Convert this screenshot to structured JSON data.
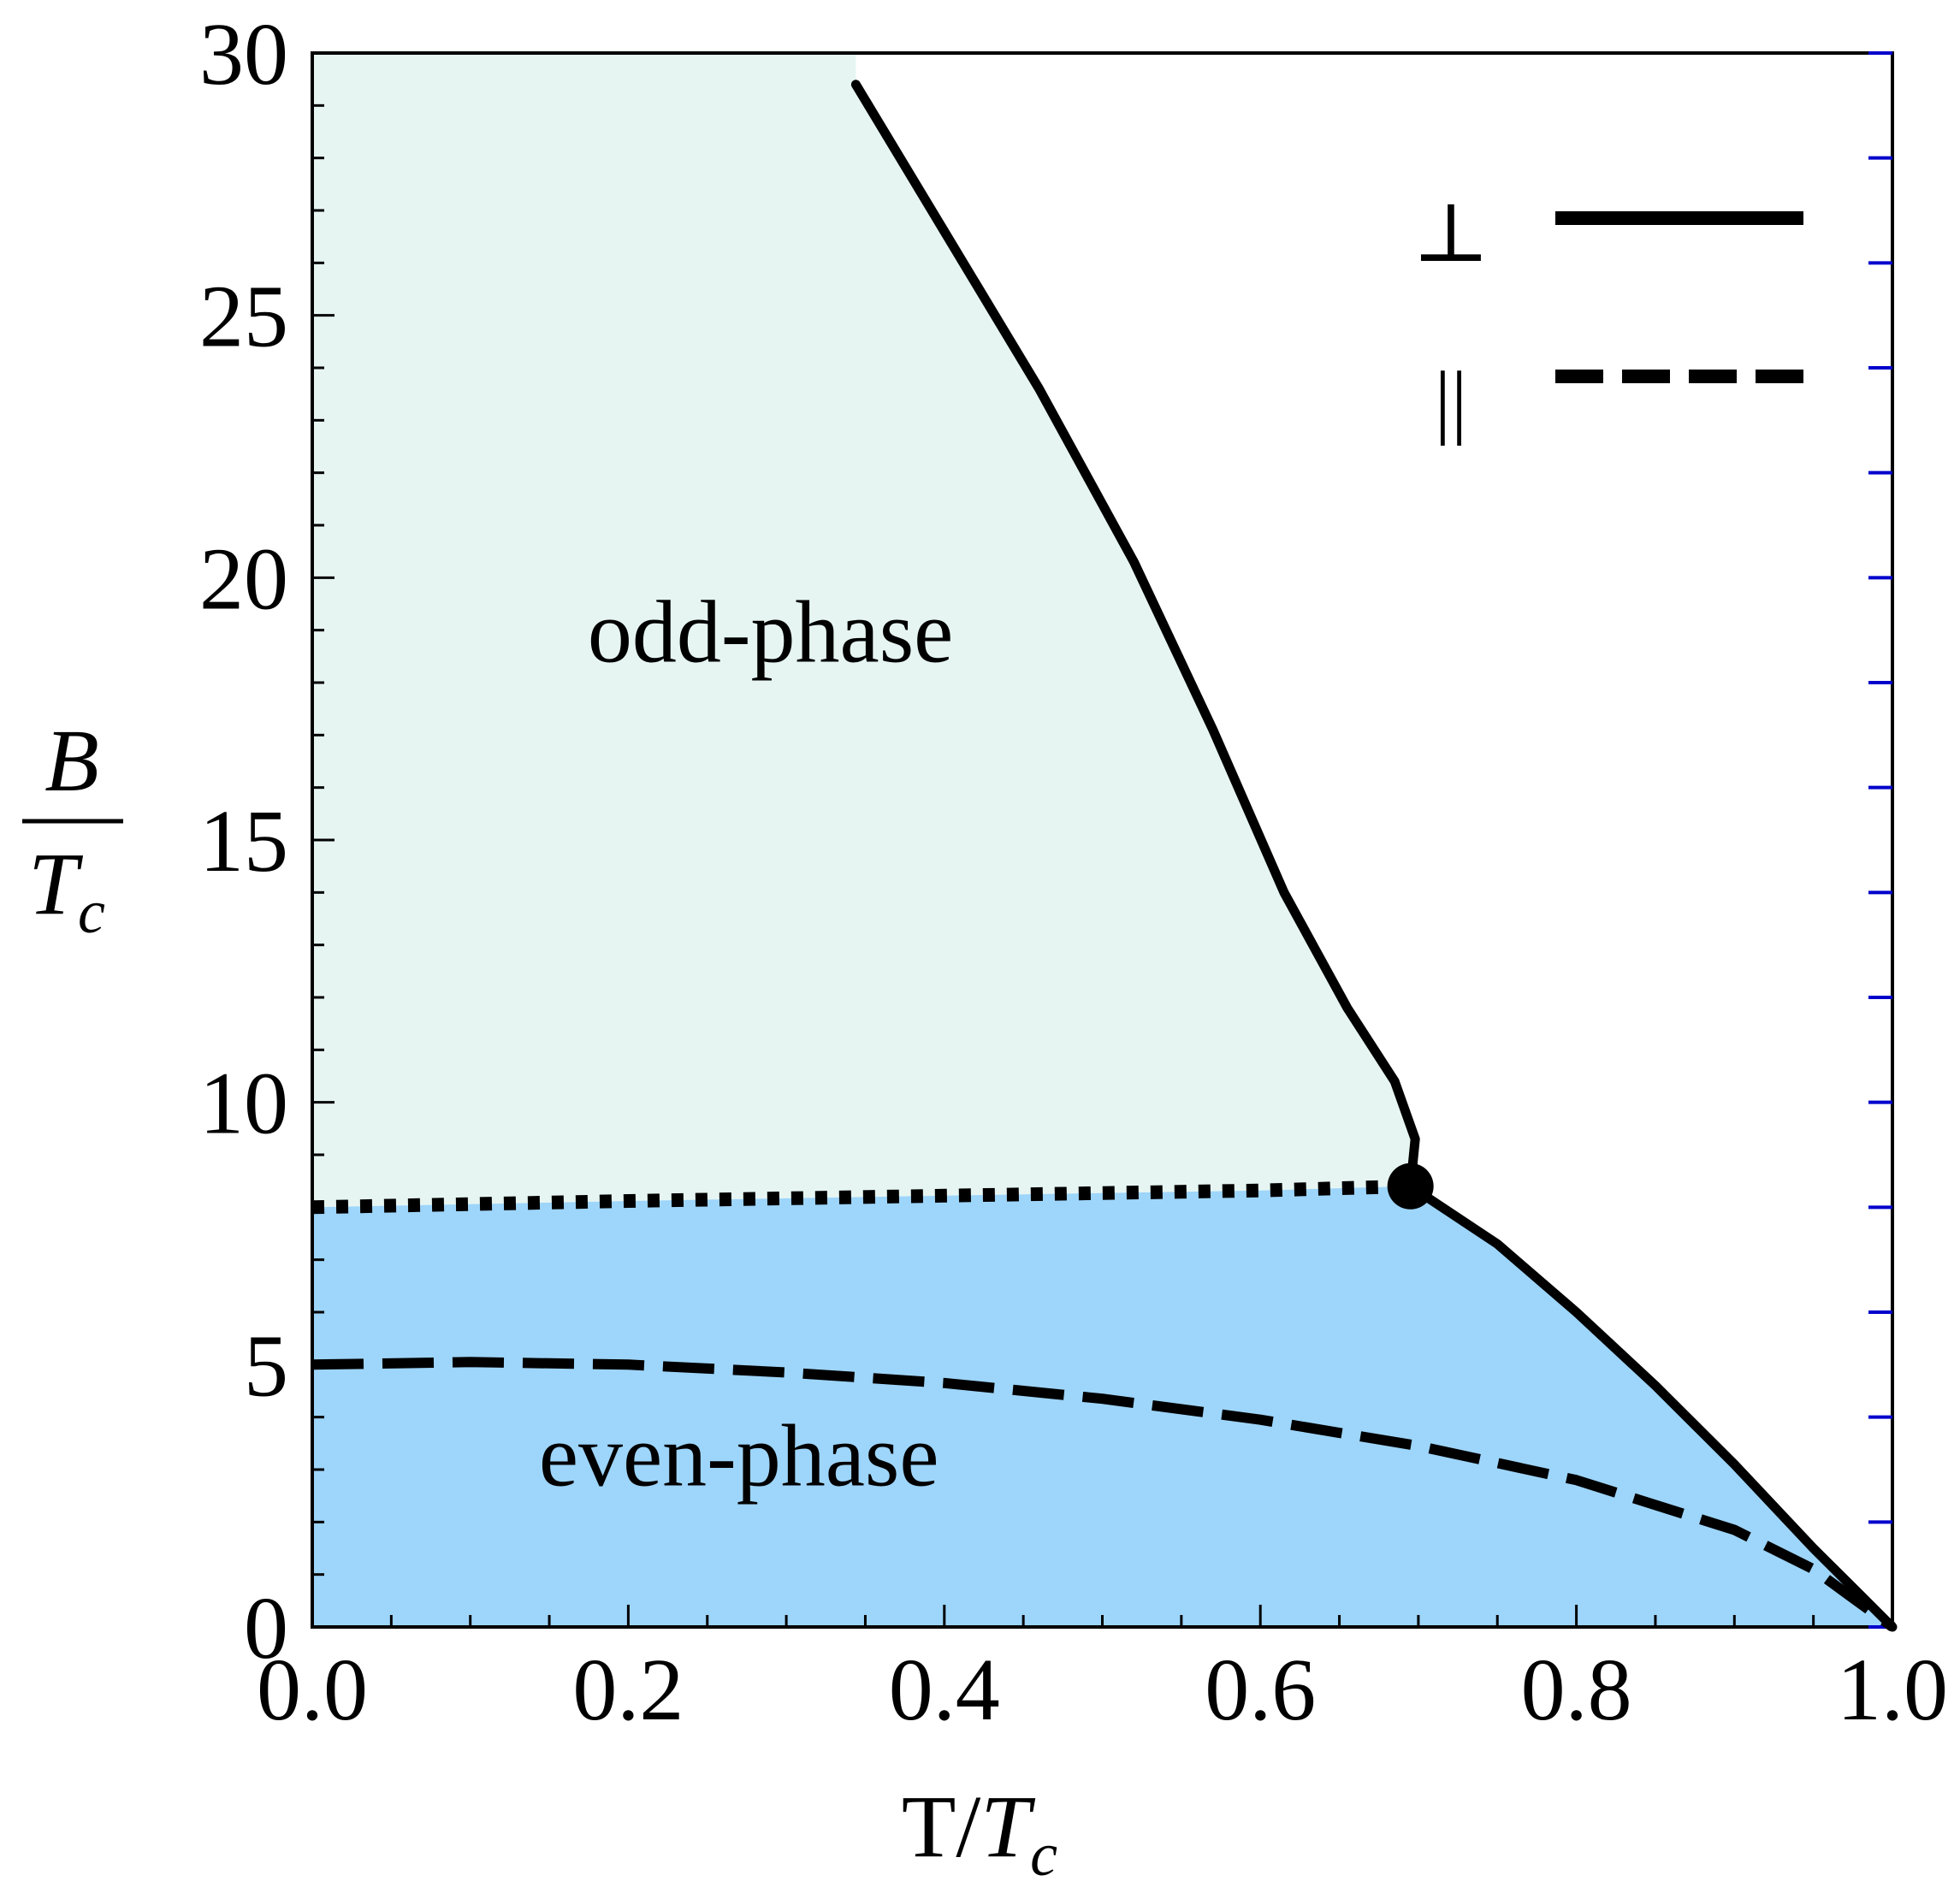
{
  "chart_data": {
    "type": "line",
    "title": "",
    "xlabel": {
      "main": "T/",
      "italic": "T",
      "sub": "c"
    },
    "ylabel": {
      "numerator": "B",
      "denominator_italic": "T",
      "denominator_sub": "c"
    },
    "xlim": [
      0.0,
      1.0
    ],
    "ylim": [
      0,
      30
    ],
    "x_ticks": [
      0.0,
      0.2,
      0.4,
      0.6,
      0.8,
      1.0
    ],
    "x_tick_labels": [
      "0.0",
      "0.2",
      "0.4",
      "0.6",
      "0.8",
      "1.0"
    ],
    "y_ticks": [
      0,
      5,
      10,
      15,
      20,
      25,
      30
    ],
    "y_tick_labels": [
      "0",
      "5",
      "10",
      "15",
      "20",
      "25",
      "30"
    ],
    "grid": false,
    "legend_position": "top-right",
    "legend": [
      {
        "symbol": "⊥",
        "style": "solid"
      },
      {
        "symbol": "||",
        "style": "dashed"
      }
    ],
    "regions": [
      {
        "label": "odd-phase",
        "color": "#e6f5f2"
      },
      {
        "label": "even-phase",
        "color": "#9ed5fa"
      }
    ],
    "region_label_positions": [
      {
        "label": "odd-phase",
        "x": 0.29,
        "y": 18.4
      },
      {
        "label": "even-phase",
        "x": 0.27,
        "y": 2.7
      }
    ],
    "series": [
      {
        "style": "solid",
        "points": [
          [
            0.344,
            29.4
          ],
          [
            0.4,
            26.6
          ],
          [
            0.46,
            23.6
          ],
          [
            0.52,
            20.3
          ],
          [
            0.57,
            17.1
          ],
          [
            0.615,
            14.0
          ],
          [
            0.655,
            11.8
          ],
          [
            0.685,
            10.4
          ],
          [
            0.698,
            9.3
          ],
          [
            0.695,
            8.4
          ]
        ]
      },
      {
        "style": "solid",
        "points": [
          [
            0.695,
            8.4
          ],
          [
            0.75,
            7.3
          ],
          [
            0.8,
            6.0
          ],
          [
            0.85,
            4.6
          ],
          [
            0.9,
            3.1
          ],
          [
            0.95,
            1.5
          ],
          [
            0.98,
            0.6
          ],
          [
            1.0,
            0.0
          ]
        ]
      },
      {
        "style": "dotted",
        "points": [
          [
            0.0,
            8.0
          ],
          [
            0.2,
            8.12
          ],
          [
            0.4,
            8.22
          ],
          [
            0.6,
            8.32
          ],
          [
            0.695,
            8.4
          ]
        ]
      },
      {
        "style": "dashed",
        "points": [
          [
            0.0,
            5.0
          ],
          [
            0.1,
            5.05
          ],
          [
            0.2,
            5.0
          ],
          [
            0.3,
            4.85
          ],
          [
            0.4,
            4.65
          ],
          [
            0.5,
            4.35
          ],
          [
            0.6,
            3.95
          ],
          [
            0.7,
            3.45
          ],
          [
            0.8,
            2.8
          ],
          [
            0.9,
            1.85
          ],
          [
            0.95,
            1.1
          ],
          [
            1.0,
            0.0
          ]
        ]
      }
    ],
    "critical_point": {
      "x": 0.695,
      "y": 8.4
    },
    "colors": {
      "odd_phase": "#e6f5f2",
      "even_phase": "#9ed5fa",
      "line": "#000000",
      "right_axis_ticks": "#0000cc"
    }
  }
}
